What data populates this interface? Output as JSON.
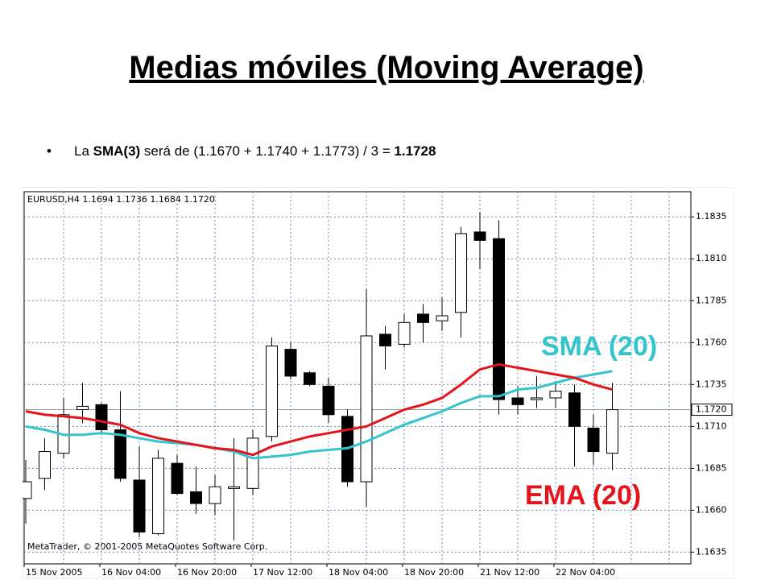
{
  "title": "Medias móviles (Moving Average)",
  "bullet": [
    {
      "text": "La "
    },
    {
      "text": "SMA(3)",
      "bold": true
    },
    {
      "text": " será de (1.1670 + 1.1740 + 1.1773) / 3 = "
    },
    {
      "text": "1.1728",
      "bold": true
    }
  ],
  "chart_data": {
    "type": "candlestick",
    "header": "EURUSD,H4  1.1694 1.1736 1.1684 1.1720",
    "footer": "MetaTrader, © 2001-2005 MetaQuotes Software Corp.",
    "categories": [
      "15 Nov 2005",
      null,
      null,
      null,
      "16 Nov 04:00",
      null,
      null,
      null,
      "16 Nov 20:00",
      null,
      null,
      null,
      "17 Nov 12:00",
      null,
      null,
      null,
      "18 Nov 04:00",
      null,
      null,
      null,
      "18 Nov 20:00",
      null,
      null,
      null,
      "21 Nov 12:00",
      null,
      null,
      null,
      "22 Nov 04:00",
      null,
      null,
      null
    ],
    "open": [
      1.1667,
      1.1679,
      1.1694,
      1.172,
      1.1723,
      1.1708,
      1.1678,
      1.1646,
      1.1688,
      1.1671,
      1.1664,
      1.1673,
      1.1673,
      1.1704,
      1.1756,
      1.1742,
      1.1734,
      1.1716,
      1.1677,
      1.1765,
      1.1759,
      1.1777,
      1.1773,
      1.1778,
      1.1826,
      1.1822,
      1.1727,
      1.1726,
      1.1727,
      1.173,
      1.1709,
      1.1694
    ],
    "high": [
      1.169,
      1.1703,
      1.1727,
      1.1736,
      1.1724,
      1.1731,
      1.1698,
      1.1696,
      1.1693,
      1.1686,
      1.1681,
      1.1703,
      1.1708,
      1.1763,
      1.176,
      1.1743,
      1.1739,
      1.172,
      1.1792,
      1.177,
      1.1777,
      1.1783,
      1.1787,
      1.1829,
      1.1838,
      1.1833,
      1.1734,
      1.174,
      1.1737,
      1.1735,
      1.1717,
      1.1736
    ],
    "low": [
      1.1652,
      1.1672,
      1.1691,
      1.1712,
      1.1705,
      1.1677,
      1.1644,
      1.1645,
      1.1669,
      1.1658,
      1.1657,
      1.1642,
      1.1669,
      1.1701,
      1.1738,
      1.1734,
      1.1712,
      1.1674,
      1.1662,
      1.1744,
      1.1757,
      1.176,
      1.1767,
      1.1763,
      1.1804,
      1.1717,
      1.1717,
      1.1721,
      1.1721,
      1.1686,
      1.1687,
      1.1684
    ],
    "close": [
      1.1677,
      1.1695,
      1.1717,
      1.1722,
      1.1708,
      1.1679,
      1.1647,
      1.1691,
      1.167,
      1.1664,
      1.1674,
      1.1674,
      1.1703,
      1.1758,
      1.174,
      1.1735,
      1.1717,
      1.1677,
      1.1764,
      1.1758,
      1.1772,
      1.1772,
      1.1776,
      1.1825,
      1.1821,
      1.1726,
      1.1723,
      1.1727,
      1.1731,
      1.171,
      1.1695,
      1.172
    ],
    "up_color": "#ffffff",
    "down_color": "#000000",
    "series": [
      {
        "name": "SMA (20)",
        "color": "#35c4cc",
        "values": [
          1.171,
          1.1708,
          1.1705,
          1.1705,
          1.1706,
          1.1705,
          1.1703,
          1.1701,
          1.17,
          1.1699,
          1.1697,
          1.1695,
          1.1691,
          1.1692,
          1.1693,
          1.1695,
          1.1696,
          1.1697,
          1.1701,
          1.1706,
          1.1711,
          1.1715,
          1.1719,
          1.1724,
          1.1728,
          1.1728,
          1.1732,
          1.1733,
          1.1736,
          1.1739,
          1.1741,
          1.1743
        ]
      },
      {
        "name": "EMA (20)",
        "color": "#e3141c",
        "values": [
          1.1719,
          1.1717,
          1.1716,
          1.1715,
          1.1713,
          1.1711,
          1.1706,
          1.1703,
          1.1701,
          1.1699,
          1.1697,
          1.1696,
          1.1693,
          1.1698,
          1.1701,
          1.1704,
          1.1706,
          1.1708,
          1.171,
          1.1715,
          1.172,
          1.1723,
          1.1727,
          1.1735,
          1.1744,
          1.1747,
          1.1745,
          1.1743,
          1.1741,
          1.1739,
          1.1735,
          1.1732
        ]
      }
    ],
    "current_price": {
      "value": 1.172,
      "label": "1.1720"
    },
    "ylim": [
      1.1628,
      1.185
    ],
    "yticks": [
      1.1835,
      {
        "value": 1.181,
        "label": "1.1810"
      },
      1.1785,
      {
        "value": 1.176,
        "label": "1.1760"
      },
      1.1735,
      {
        "value": 1.171,
        "label": "1.1710"
      },
      1.1685,
      {
        "value": 1.166,
        "label": "1.1660"
      },
      1.1635
    ],
    "grid": true
  }
}
